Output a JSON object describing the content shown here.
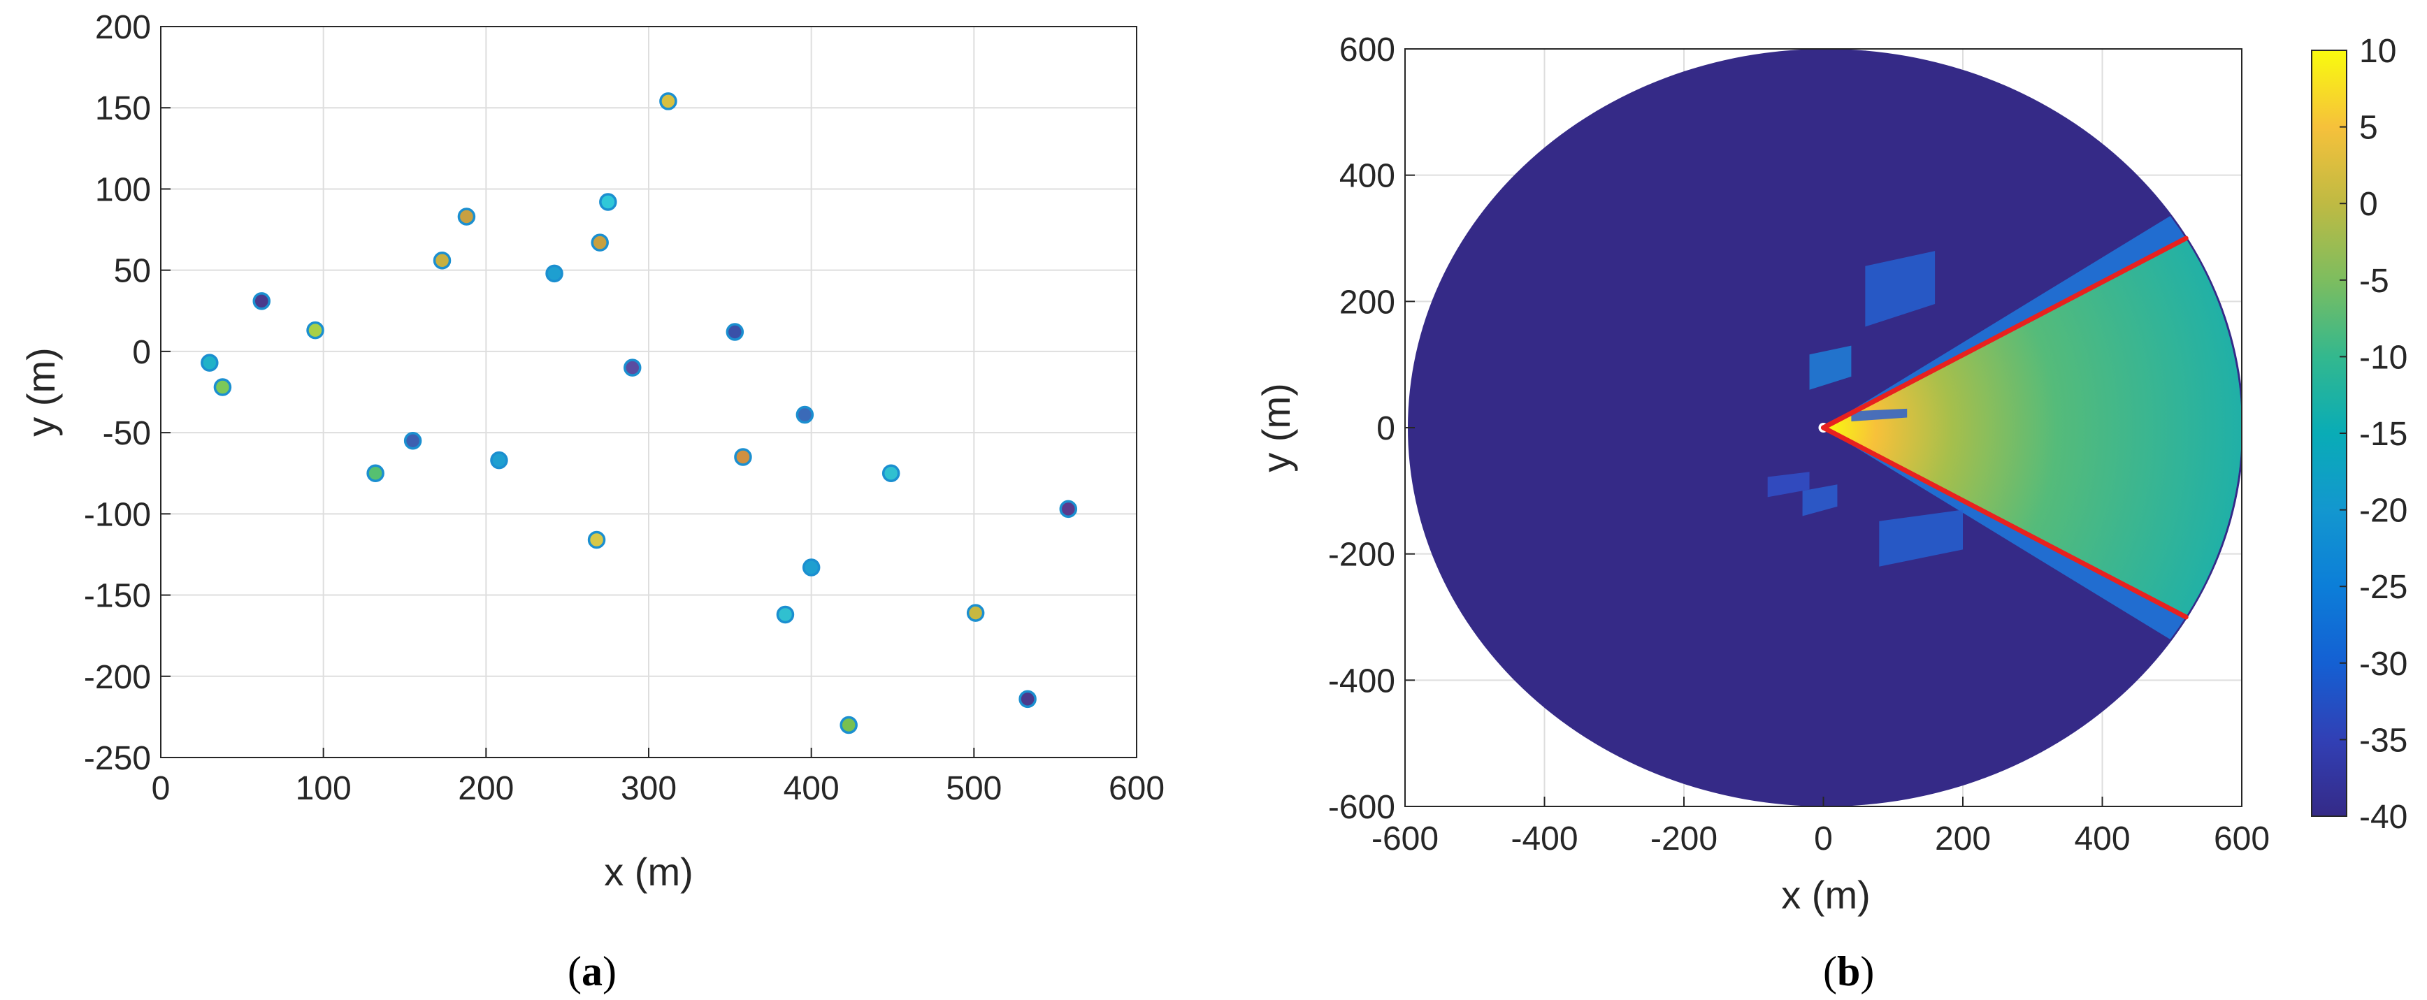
{
  "chart_data": [
    {
      "type": "scatter",
      "panel_label": "a",
      "xlabel": "x (m)",
      "ylabel": "y (m)",
      "xlim": [
        0,
        600
      ],
      "ylim": [
        -250,
        200
      ],
      "xticks": [
        0,
        100,
        200,
        300,
        400,
        500,
        600
      ],
      "yticks": [
        -250,
        -200,
        -150,
        -100,
        -50,
        0,
        50,
        100,
        150,
        200
      ],
      "grid": true,
      "points": [
        {
          "x": 30,
          "y": -7,
          "color": "#20b2c8"
        },
        {
          "x": 38,
          "y": -22,
          "color": "#7cc858"
        },
        {
          "x": 62,
          "y": 31,
          "color": "#4a3a8c"
        },
        {
          "x": 95,
          "y": 13,
          "color": "#a8d048"
        },
        {
          "x": 132,
          "y": -75,
          "color": "#56c070"
        },
        {
          "x": 155,
          "y": -55,
          "color": "#3d5fb0"
        },
        {
          "x": 173,
          "y": 56,
          "color": "#c8b040"
        },
        {
          "x": 188,
          "y": 83,
          "color": "#c8a040"
        },
        {
          "x": 208,
          "y": -67,
          "color": "#1e9fd0"
        },
        {
          "x": 242,
          "y": 48,
          "color": "#1e9fd0"
        },
        {
          "x": 268,
          "y": -116,
          "color": "#d8c848"
        },
        {
          "x": 270,
          "y": 67,
          "color": "#c8a040"
        },
        {
          "x": 275,
          "y": 92,
          "color": "#30c8d8"
        },
        {
          "x": 290,
          "y": -10,
          "color": "#5a4ca0"
        },
        {
          "x": 312,
          "y": 154,
          "color": "#d8c040"
        },
        {
          "x": 353,
          "y": 12,
          "color": "#3a50a8"
        },
        {
          "x": 358,
          "y": -65,
          "color": "#d09040"
        },
        {
          "x": 384,
          "y": -162,
          "color": "#30c0d0"
        },
        {
          "x": 396,
          "y": -39,
          "color": "#3a6ab8"
        },
        {
          "x": 400,
          "y": -133,
          "color": "#1e9fd0"
        },
        {
          "x": 423,
          "y": -230,
          "color": "#78c050"
        },
        {
          "x": 449,
          "y": -75,
          "color": "#30c0d0"
        },
        {
          "x": 501,
          "y": -161,
          "color": "#c8b840"
        },
        {
          "x": 533,
          "y": -214,
          "color": "#4a3a8c"
        },
        {
          "x": 558,
          "y": -97,
          "color": "#5a3a8c"
        }
      ]
    },
    {
      "type": "heatmap",
      "panel_label": "b",
      "xlabel": "x (m)",
      "ylabel": "y (m)",
      "xlim": [
        -600,
        600
      ],
      "ylim": [
        -600,
        600
      ],
      "xticks": [
        -600,
        -400,
        -200,
        0,
        200,
        400,
        600
      ],
      "yticks": [
        -600,
        -400,
        -200,
        0,
        200,
        400,
        600
      ],
      "grid": true,
      "colorbar": {
        "min": -40,
        "max": 10,
        "ticks": [
          10,
          5,
          0,
          -5,
          -10,
          -15,
          -20,
          -25,
          -30,
          -35,
          -40
        ],
        "colormap": "parula"
      },
      "coverage_radius": 600,
      "background_value": -40,
      "sector_edges": [
        {
          "x": 520,
          "y": 300,
          "color": "#e8211e"
        },
        {
          "x": 520,
          "y": -300,
          "color": "#e8211e"
        }
      ]
    }
  ],
  "captions": {
    "a": "a",
    "b": "b"
  }
}
